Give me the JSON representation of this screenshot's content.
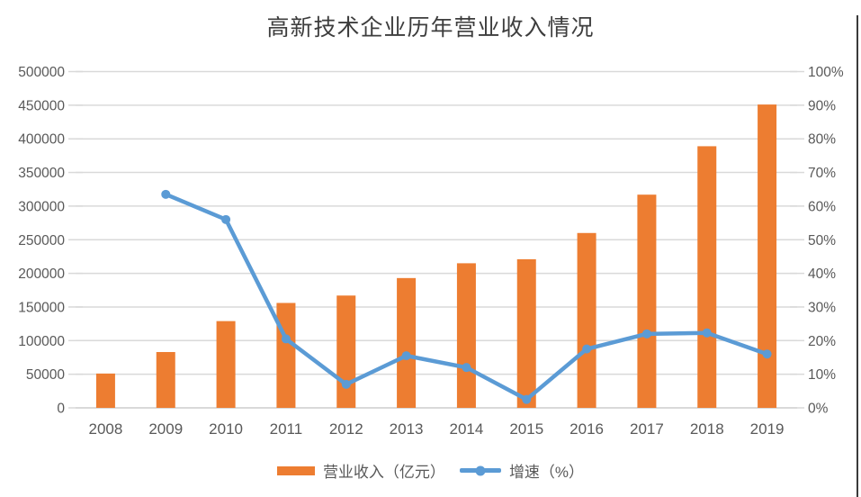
{
  "title": "高新技术企业历年营业收入情况",
  "legend": {
    "items": [
      {
        "label": "营业收入（亿元）",
        "marker": "bar-swatch",
        "color": "#ED7D31"
      },
      {
        "label": "增速（%）",
        "marker": "line-with-dot-swatch",
        "color": "#5B9BD5"
      }
    ]
  },
  "colors": {
    "bar": "#ED7D31",
    "line": "#5B9BD5",
    "gridline": "#D9D9D9",
    "axis_text": "#595959",
    "title_text": "#3D3D3D",
    "border_line": "#3A3A3A"
  },
  "chart_data": {
    "type": "bar",
    "subtype": "combo-bar-line-dual-axis",
    "title": "高新技术企业历年营业收入情况",
    "categories": [
      "2008",
      "2009",
      "2010",
      "2011",
      "2012",
      "2013",
      "2014",
      "2015",
      "2016",
      "2017",
      "2018",
      "2019"
    ],
    "series": [
      {
        "name": "营业收入（亿元）",
        "type": "bar",
        "axis": "left",
        "color": "#ED7D31",
        "values": [
          51000,
          83000,
          129000,
          156000,
          167000,
          193000,
          215000,
          221000,
          260000,
          317000,
          389000,
          451000
        ]
      },
      {
        "name": "增速（%）",
        "type": "line",
        "axis": "right",
        "color": "#5B9BD5",
        "values": [
          null,
          63.5,
          56,
          20.5,
          7,
          15.5,
          12,
          2.5,
          17.5,
          22,
          22.3,
          16
        ]
      }
    ],
    "left_axis": {
      "min": 0,
      "max": 500000,
      "step": 50000,
      "tick_labels": [
        "0",
        "50000",
        "100000",
        "150000",
        "200000",
        "250000",
        "300000",
        "350000",
        "400000",
        "450000",
        "500000"
      ]
    },
    "right_axis": {
      "min": 0,
      "max": 100,
      "step": 10,
      "tick_labels": [
        "0%",
        "10%",
        "20%",
        "30%",
        "40%",
        "50%",
        "60%",
        "70%",
        "80%",
        "90%",
        "100%"
      ]
    },
    "grid": true,
    "legend_position": "bottom"
  }
}
